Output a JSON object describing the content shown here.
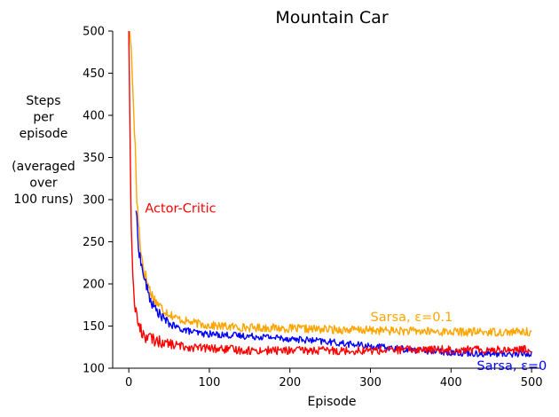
{
  "chart_data": {
    "type": "line",
    "title": "Mountain Car",
    "xlabel": "Episode",
    "ylabel_lines": [
      "Steps",
      "per",
      "episode",
      "",
      "(averaged",
      "over",
      "100 runs)"
    ],
    "xlim": [
      -20,
      512
    ],
    "ylim": [
      100,
      500
    ],
    "xticks": [
      0,
      100,
      200,
      300,
      400,
      500
    ],
    "yticks": [
      100,
      150,
      200,
      250,
      300,
      350,
      400,
      450,
      500
    ],
    "grid": false,
    "series": [
      {
        "name": "Sarsa, ε=0.1",
        "color": "#FFA500",
        "x": [
          1,
          3,
          5,
          8,
          10,
          13,
          16,
          20,
          25,
          30,
          40,
          50,
          60,
          75,
          90,
          110,
          130,
          150,
          175,
          200,
          250,
          300,
          350,
          400,
          450,
          500
        ],
        "y": [
          500,
          480,
          430,
          360,
          300,
          262,
          232,
          212,
          196,
          184,
          172,
          165,
          159,
          155,
          152,
          150,
          149,
          148,
          148,
          147,
          146,
          145,
          144,
          143,
          143,
          143
        ]
      },
      {
        "name": "Sarsa, ε=0",
        "color": "#0000FF",
        "x": [
          9,
          11,
          13,
          16,
          20,
          25,
          30,
          40,
          50,
          60,
          75,
          90,
          110,
          130,
          150,
          175,
          200,
          250,
          300,
          350,
          400,
          450,
          500
        ],
        "y": [
          290,
          258,
          238,
          220,
          204,
          186,
          174,
          162,
          153,
          148,
          144,
          141,
          140,
          139,
          138,
          137,
          135,
          131,
          126,
          122,
          119,
          117,
          117
        ]
      },
      {
        "name": "Actor-Critic",
        "color": "#FF0000",
        "x": [
          0,
          1,
          2,
          3,
          5,
          7,
          10,
          13,
          16,
          20,
          25,
          30,
          40,
          50,
          60,
          75,
          90,
          110,
          130,
          150,
          175,
          200,
          250,
          300,
          350,
          400,
          450,
          500
        ],
        "y": [
          500,
          420,
          340,
          270,
          210,
          180,
          160,
          149,
          143,
          139,
          136,
          134,
          131,
          129,
          127,
          125,
          124,
          123,
          122,
          121,
          121,
          121,
          121,
          121,
          122,
          122,
          122,
          122
        ]
      }
    ],
    "annotations": [
      {
        "text": "Actor-Critic",
        "x": 20,
        "y": 290,
        "color": "#FF0000"
      },
      {
        "text": "Sarsa, ε=0.1",
        "x": 300,
        "y": 161,
        "color": "#FFA500"
      },
      {
        "text": "Sarsa, ε=0",
        "x": 432,
        "y": 103,
        "color": "#0000FF"
      }
    ]
  }
}
